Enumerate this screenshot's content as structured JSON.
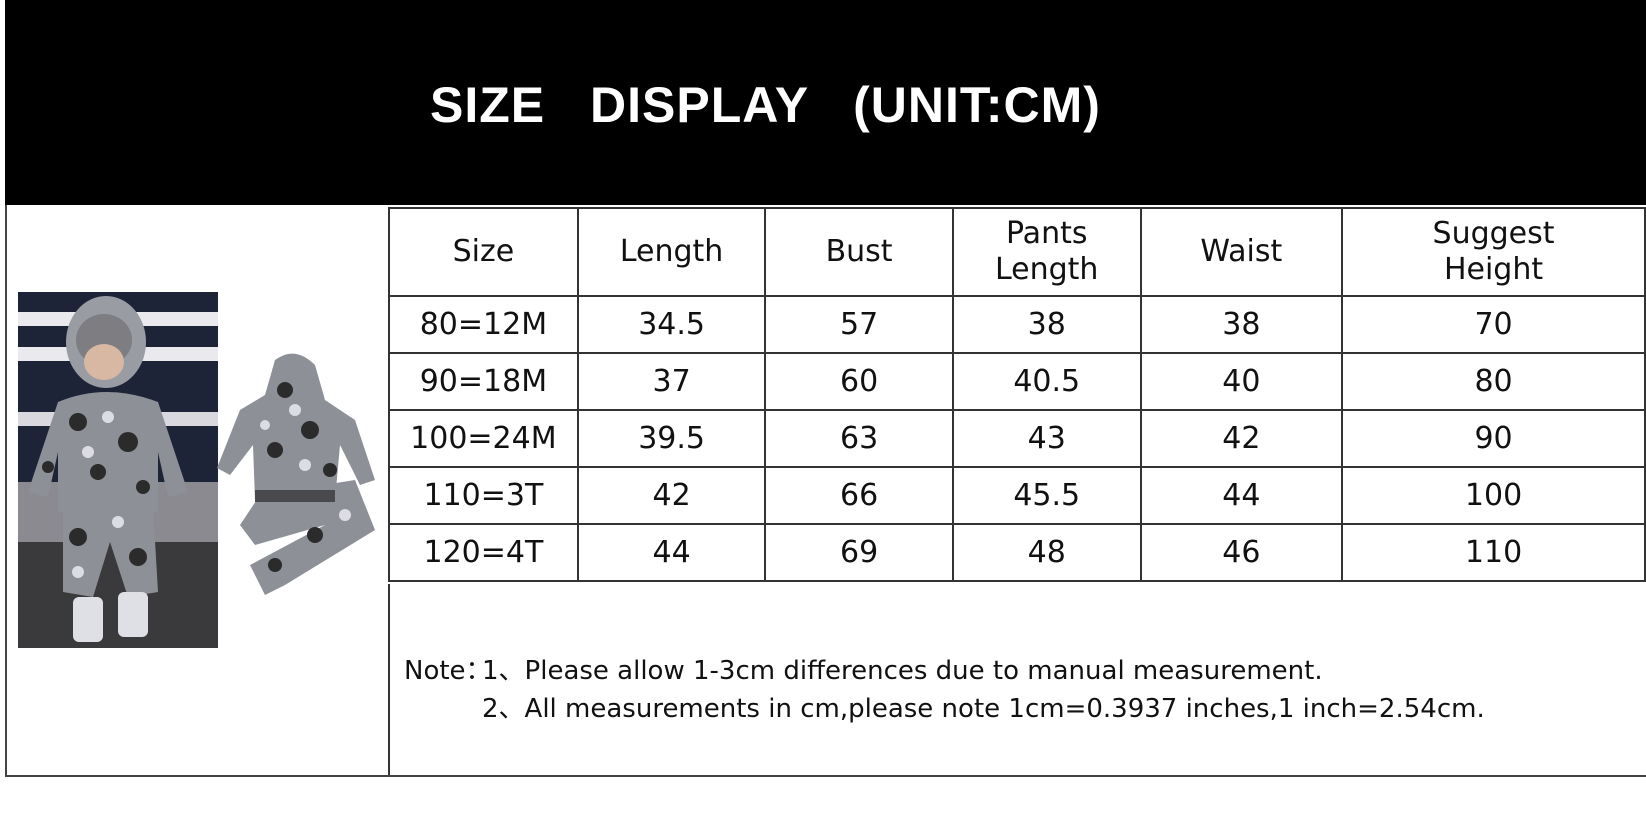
{
  "title": "SIZE   DISPLAY (UNIT:CM)",
  "table": {
    "headers": [
      "Size",
      "Length",
      "Bust",
      "Pants Length",
      "Waist",
      "Suggest Height"
    ],
    "rows": [
      [
        "80=12M",
        "34.5",
        "57",
        "38",
        "38",
        "70"
      ],
      [
        "90=18M",
        "37",
        "60",
        "40.5",
        "40",
        "80"
      ],
      [
        "100=24M",
        "39.5",
        "63",
        "43",
        "42",
        "90"
      ],
      [
        "110=3T",
        "42",
        "66",
        "45.5",
        "44",
        "100"
      ],
      [
        "120=4T",
        "44",
        "69",
        "48",
        "46",
        "110"
      ]
    ]
  },
  "notes": {
    "label": "Note：",
    "items": [
      "1、Please allow 1-3cm differences due to manual measurement.",
      "2、All measurements in cm,please note 1cm=0.3937 inches,1 inch=2.54cm."
    ]
  },
  "images": {
    "model_photo": "child wearing camouflage hoodie and pants",
    "product_photo": "camouflage hoodie and pants set"
  },
  "colors": {
    "banner": "#000000",
    "camo_dark": "#2b2b2b",
    "camo_mid": "#6f7278",
    "camo_light": "#c9cbd0"
  }
}
